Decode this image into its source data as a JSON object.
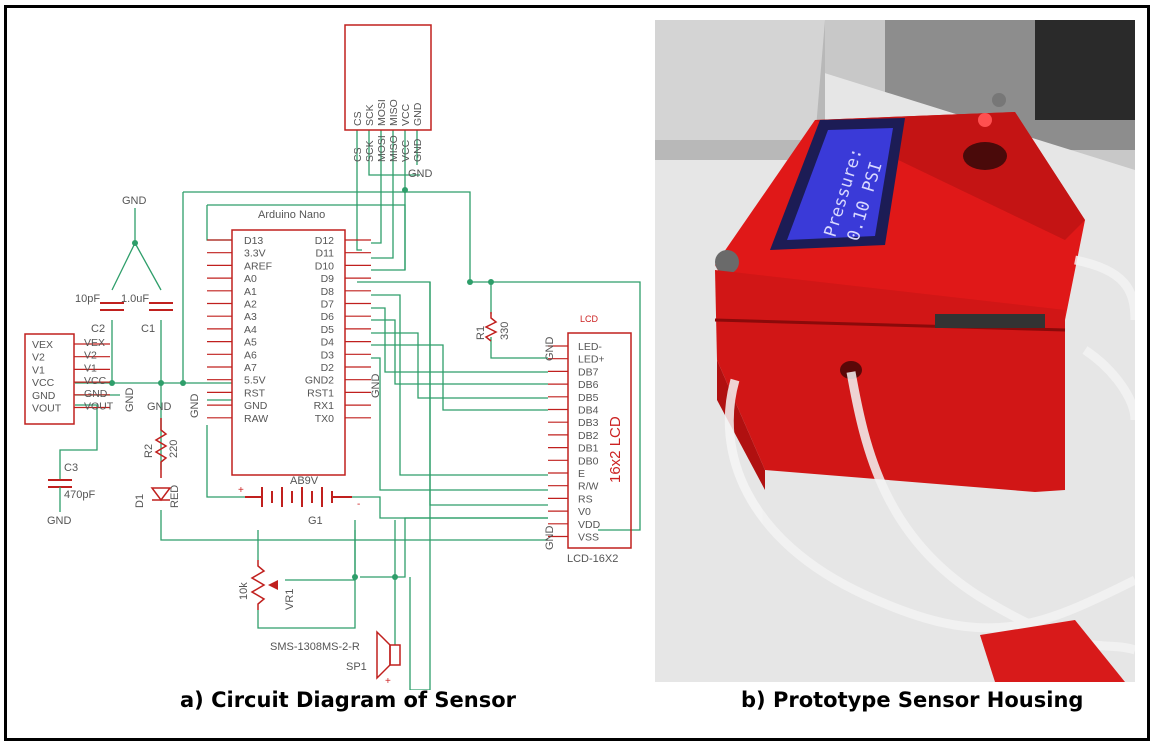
{
  "captions": {
    "a": "a) Circuit Diagram of Sensor",
    "b": "b) Prototype Sensor Housing"
  },
  "colors": {
    "part_outline": "#c0201e",
    "wire": "#2e9e6a",
    "text": "#555555",
    "housing_red": "#e01818",
    "lcd_blue": "#3a3ad8"
  },
  "schematic": {
    "nano_title": "Arduino Nano",
    "nano_left_pins": [
      "D13",
      "3.3V",
      "AREF",
      "A0",
      "A1",
      "A2",
      "A3",
      "A4",
      "A5",
      "A6",
      "A7",
      "5.5V",
      "RST",
      "GND",
      "RAW"
    ],
    "nano_right_pins": [
      "D12",
      "D11",
      "D10",
      "D9",
      "D8",
      "D7",
      "D6",
      "D5",
      "D4",
      "D3",
      "D2",
      "GND2",
      "RST1",
      "RX1",
      "TX0"
    ],
    "sd_pins": [
      "CS",
      "SCK",
      "MOSI",
      "MISO",
      "VCC",
      "GND"
    ],
    "sd_nets": [
      "CS",
      "SCK",
      "MOSI",
      "MISO",
      "VCC",
      "GND"
    ],
    "sd_gnd": "GND",
    "lcd_pins": [
      "LED-",
      "LED+",
      "DB7",
      "DB6",
      "DB5",
      "DB4",
      "DB3",
      "DB2",
      "DB1",
      "DB0",
      "E",
      "R/W",
      "RS",
      "V0",
      "VDD",
      "VSS"
    ],
    "lcd_title": "16x2 LCD",
    "lcd_tag": "LCD",
    "lcd_name": "LCD-16X2",
    "sensor_pins": [
      "VEX",
      "V2",
      "V1",
      "VCC",
      "GND",
      "VOUT"
    ],
    "sensor_nets": [
      "VEX",
      "V2",
      "V1",
      "VCC",
      "GND",
      "VOUT"
    ],
    "gnd": "GND",
    "c1_name": "C1",
    "c1_value": "1.0uF",
    "c2_name": "C2",
    "c2_value": "10pF",
    "c3_name": "C3",
    "c3_value": "470pF",
    "r1_name": "R1",
    "r1_value": "330",
    "r2_name": "R2",
    "r2_value": "220",
    "d1_name": "D1",
    "d1_value": "RED",
    "battery_value": "AB9V",
    "battery_name": "G1",
    "battery_plus": "+",
    "battery_minus": "-",
    "pot_value": "10k",
    "pot_name": "VR1",
    "speaker_value": "SMS-1308MS-2-R",
    "speaker_name": "SP1",
    "speaker_plus": "+"
  },
  "photo": {
    "lcd_line1": "Pressure:",
    "lcd_line2": "0.10 PSI"
  }
}
